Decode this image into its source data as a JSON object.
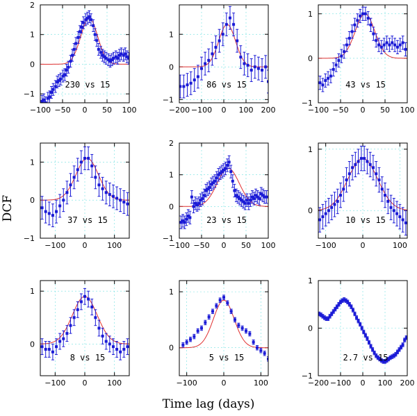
{
  "figure": {
    "ylabel": "DCF",
    "xlabel": "Time lag (days)"
  },
  "chart_data": [
    {
      "type": "scatter",
      "label": "230 vs 15",
      "xlim": [
        -100,
        100
      ],
      "ylim": [
        -1.3,
        2
      ],
      "xticks": [
        -100,
        -50,
        0,
        50,
        100
      ],
      "yticks": [
        -1,
        0,
        1,
        2
      ],
      "series": [
        {
          "name": "DCF",
          "x": [
            -96,
            -92,
            -88,
            -83,
            -79,
            -75,
            -71,
            -66,
            -62,
            -58,
            -54,
            -49,
            -45,
            -41,
            -37,
            -32,
            -28,
            -24,
            -20,
            -15,
            -11,
            -7,
            -3,
            2,
            6,
            10,
            14,
            19,
            23,
            27,
            31,
            36,
            40,
            44,
            48,
            53,
            57,
            61,
            65,
            70,
            74,
            78,
            82,
            87,
            91,
            95,
            99
          ],
          "y": [
            -1.25,
            -1.2,
            -1.3,
            -1.15,
            -1.1,
            -0.95,
            -0.85,
            -0.75,
            -0.6,
            -0.55,
            -0.5,
            -0.4,
            -0.35,
            -0.2,
            -0.1,
            0.1,
            0.3,
            0.5,
            0.7,
            0.9,
            1.1,
            1.25,
            1.4,
            1.5,
            1.55,
            1.6,
            1.5,
            1.3,
            1.0,
            0.8,
            0.5,
            0.4,
            0.3,
            0.25,
            0.2,
            0.15,
            0.1,
            0.15,
            0.2,
            0.25,
            0.2,
            0.3,
            0.35,
            0.3,
            0.35,
            0.25,
            0.2
          ],
          "err": 0.2
        },
        {
          "name": "Gaussian fit",
          "amplitude": 1.55,
          "center": 10,
          "sigma": 19,
          "offset": 0
        }
      ]
    },
    {
      "type": "scatter",
      "label": "86 vs 15",
      "xlim": [
        -200,
        200
      ],
      "ylim": [
        -1.1,
        1.9
      ],
      "xticks": [
        -200,
        -100,
        0,
        100,
        200
      ],
      "yticks": [
        -1,
        0,
        1
      ],
      "series": [
        {
          "name": "DCF",
          "x": [
            -196,
            -180,
            -164,
            -148,
            -132,
            -116,
            -100,
            -84,
            -68,
            -52,
            -36,
            -20,
            -4,
            12,
            28,
            44,
            60,
            76,
            92,
            108,
            124,
            140,
            156,
            172,
            188,
            200
          ],
          "y": [
            -0.6,
            -0.6,
            -0.55,
            -0.5,
            -0.4,
            -0.3,
            -0.05,
            0.1,
            0.2,
            0.4,
            0.6,
            0.8,
            1.0,
            1.3,
            1.5,
            1.3,
            0.8,
            0.3,
            0.1,
            0.05,
            -0.1,
            0.0,
            -0.05,
            -0.1,
            0.0,
            -0.45
          ],
          "err": 0.35
        },
        {
          "name": "Gaussian fit",
          "amplitude": 1.3,
          "center": 15,
          "sigma": 38,
          "offset": 0
        }
      ]
    },
    {
      "type": "scatter",
      "label": "43 vs 15",
      "xlim": [
        -100,
        100
      ],
      "ylim": [
        -1,
        1.2
      ],
      "xticks": [
        -100,
        -50,
        0,
        50,
        100
      ],
      "yticks": [
        -1,
        0,
        1
      ],
      "series": [
        {
          "name": "DCF",
          "x": [
            -96,
            -90,
            -84,
            -78,
            -72,
            -66,
            -60,
            -54,
            -48,
            -42,
            -36,
            -30,
            -24,
            -18,
            -12,
            -6,
            0,
            6,
            12,
            18,
            24,
            30,
            36,
            42,
            48,
            54,
            60,
            66,
            72,
            78,
            84,
            90,
            96
          ],
          "y": [
            -0.55,
            -0.6,
            -0.5,
            -0.45,
            -0.4,
            -0.25,
            -0.15,
            -0.05,
            0.05,
            0.15,
            0.3,
            0.45,
            0.6,
            0.75,
            0.85,
            0.95,
            1.0,
            1.0,
            0.9,
            0.75,
            0.55,
            0.4,
            0.3,
            0.25,
            0.3,
            0.35,
            0.3,
            0.35,
            0.3,
            0.25,
            0.3,
            0.35,
            0.2
          ],
          "err": 0.15
        },
        {
          "name": "Gaussian fit",
          "amplitude": 1.0,
          "center": 5,
          "sigma": 22,
          "offset": 0
        }
      ]
    },
    {
      "type": "scatter",
      "label": "37 vs 15",
      "xlim": [
        -150,
        150
      ],
      "ylim": [
        -1,
        1.5
      ],
      "xticks": [
        -100,
        0,
        100
      ],
      "yticks": [
        -1,
        0,
        1
      ],
      "series": [
        {
          "name": "DCF",
          "x": [
            -144,
            -132,
            -120,
            -108,
            -96,
            -84,
            -72,
            -60,
            -48,
            -36,
            -24,
            -12,
            0,
            12,
            24,
            36,
            48,
            60,
            72,
            84,
            96,
            108,
            120,
            132,
            144
          ],
          "y": [
            -0.2,
            -0.3,
            -0.35,
            -0.4,
            -0.3,
            -0.15,
            0.0,
            0.2,
            0.4,
            0.6,
            0.8,
            1.0,
            1.1,
            1.1,
            0.9,
            0.6,
            0.4,
            0.3,
            0.2,
            0.15,
            0.1,
            0.05,
            0.0,
            -0.05,
            -0.1
          ],
          "err": 0.3
        },
        {
          "name": "Gaussian fit",
          "amplitude": 1.1,
          "center": 8,
          "sigma": 38,
          "offset": 0
        }
      ]
    },
    {
      "type": "scatter",
      "label": "23 vs 15",
      "xlim": [
        -100,
        100
      ],
      "ylim": [
        -1,
        2
      ],
      "xticks": [
        -100,
        -50,
        0,
        50,
        100
      ],
      "yticks": [
        -1,
        0,
        1,
        2
      ],
      "series": [
        {
          "name": "DCF",
          "x": [
            -96,
            -92,
            -88,
            -84,
            -80,
            -76,
            -72,
            -68,
            -64,
            -60,
            -56,
            -52,
            -48,
            -44,
            -40,
            -36,
            -32,
            -28,
            -24,
            -20,
            -16,
            -12,
            -8,
            -4,
            0,
            4,
            8,
            12,
            16,
            20,
            24,
            28,
            32,
            36,
            40,
            44,
            48,
            52,
            56,
            60,
            64,
            68,
            72,
            76,
            80,
            84,
            88,
            92,
            96
          ],
          "y": [
            -0.5,
            -0.45,
            -0.5,
            -0.4,
            -0.3,
            -0.35,
            0.3,
            0.0,
            0.1,
            0.05,
            0.1,
            0.2,
            0.25,
            0.35,
            0.5,
            0.55,
            0.6,
            0.7,
            0.75,
            0.8,
            0.9,
            1.0,
            1.05,
            1.1,
            1.15,
            1.2,
            1.3,
            1.4,
            1.1,
            0.8,
            0.5,
            0.35,
            0.3,
            0.25,
            0.2,
            0.15,
            0.1,
            0.2,
            0.1,
            0.2,
            0.3,
            0.25,
            0.35,
            0.3,
            0.25,
            0.4,
            0.35,
            0.3,
            0.3
          ],
          "err": 0.2
        },
        {
          "name": "Gaussian fit",
          "amplitude": 1.2,
          "center": 10,
          "sigma": 25,
          "offset": 0
        }
      ]
    },
    {
      "type": "scatter",
      "label": "10 vs 15",
      "xlim": [
        -120,
        120
      ],
      "ylim": [
        -0.45,
        1.1
      ],
      "xticks": [
        -100,
        0,
        100
      ],
      "yticks": [
        0,
        1
      ],
      "series": [
        {
          "name": "DCF",
          "x": [
            -116,
            -108,
            -100,
            -92,
            -84,
            -76,
            -68,
            -60,
            -52,
            -44,
            -36,
            -28,
            -20,
            -12,
            -4,
            4,
            12,
            20,
            28,
            36,
            44,
            52,
            60,
            68,
            76,
            84,
            92,
            100,
            108,
            116
          ],
          "y": [
            -0.15,
            -0.1,
            -0.05,
            0.0,
            0.05,
            0.1,
            0.15,
            0.25,
            0.35,
            0.5,
            0.6,
            0.7,
            0.75,
            0.8,
            0.85,
            0.85,
            0.8,
            0.75,
            0.7,
            0.6,
            0.5,
            0.35,
            0.25,
            0.15,
            0.05,
            0.0,
            -0.05,
            -0.1,
            -0.15,
            -0.2
          ],
          "err": 0.2
        },
        {
          "name": "Gaussian fit",
          "amplitude": 0.85,
          "center": 0,
          "sigma": 40,
          "offset": 0
        }
      ]
    },
    {
      "type": "scatter",
      "label": "8 vs 15",
      "xlim": [
        -150,
        150
      ],
      "ylim": [
        -0.6,
        1.2
      ],
      "xticks": [
        -100,
        0,
        100
      ],
      "yticks": [
        0,
        1
      ],
      "series": [
        {
          "name": "DCF",
          "x": [
            -144,
            -132,
            -120,
            -108,
            -96,
            -84,
            -72,
            -60,
            -48,
            -36,
            -24,
            -12,
            0,
            12,
            24,
            36,
            48,
            60,
            72,
            84,
            96,
            108,
            120,
            132,
            144
          ],
          "y": [
            -0.05,
            -0.1,
            -0.1,
            -0.15,
            -0.05,
            0.05,
            0.1,
            0.2,
            0.35,
            0.5,
            0.65,
            0.8,
            0.9,
            0.85,
            0.7,
            0.5,
            0.3,
            0.15,
            0.05,
            0.0,
            -0.05,
            -0.1,
            -0.15,
            -0.1,
            -0.05
          ],
          "err": 0.15
        },
        {
          "name": "Gaussian fit",
          "amplitude": 0.9,
          "center": 0,
          "sigma": 42,
          "offset": 0
        }
      ]
    },
    {
      "type": "scatter",
      "label": "5 vs 15",
      "xlim": [
        -120,
        120
      ],
      "ylim": [
        -0.5,
        1.2
      ],
      "xticks": [
        -100,
        0,
        100
      ],
      "yticks": [
        0,
        1
      ],
      "series": [
        {
          "name": "DCF",
          "x": [
            -110,
            -100,
            -90,
            -80,
            -70,
            -60,
            -50,
            -40,
            -30,
            -20,
            -10,
            0,
            10,
            20,
            30,
            40,
            50,
            60,
            70,
            80,
            90,
            100,
            110,
            120
          ],
          "y": [
            0.05,
            0.1,
            0.15,
            0.2,
            0.3,
            0.35,
            0.45,
            0.55,
            0.65,
            0.75,
            0.85,
            0.9,
            0.8,
            0.65,
            0.5,
            0.4,
            0.35,
            0.3,
            0.25,
            0.1,
            0.0,
            -0.05,
            -0.1,
            -0.2
          ],
          "err": 0.04
        },
        {
          "name": "Gaussian fit",
          "amplitude": 0.85,
          "center": 0,
          "sigma": 28,
          "offset": 0
        }
      ]
    },
    {
      "type": "scatter",
      "label": "2.7 vs 15",
      "xlim": [
        -200,
        200
      ],
      "ylim": [
        -1,
        1
      ],
      "xticks": [
        -200,
        -100,
        0,
        100,
        200
      ],
      "yticks": [
        -1,
        0,
        1
      ],
      "series": [
        {
          "name": "DCF",
          "x": [
            -196,
            -188,
            -180,
            -172,
            -164,
            -156,
            -148,
            -140,
            -132,
            -124,
            -116,
            -108,
            -100,
            -92,
            -84,
            -76,
            -68,
            -60,
            -52,
            -44,
            -36,
            -28,
            -20,
            -12,
            -4,
            4,
            12,
            20,
            28,
            36,
            44,
            52,
            60,
            68,
            76,
            84,
            92,
            100,
            108,
            116,
            124,
            132,
            140,
            148,
            156,
            164,
            172,
            180,
            188,
            196
          ],
          "y": [
            0.3,
            0.28,
            0.25,
            0.22,
            0.2,
            0.2,
            0.25,
            0.3,
            0.35,
            0.4,
            0.45,
            0.5,
            0.55,
            0.58,
            0.6,
            0.58,
            0.55,
            0.5,
            0.45,
            0.38,
            0.3,
            0.22,
            0.15,
            0.08,
            0.0,
            -0.08,
            -0.15,
            -0.22,
            -0.3,
            -0.38,
            -0.45,
            -0.52,
            -0.58,
            -0.62,
            -0.65,
            -0.68,
            -0.7,
            -0.7,
            -0.68,
            -0.65,
            -0.62,
            -0.6,
            -0.58,
            -0.55,
            -0.5,
            -0.45,
            -0.4,
            -0.35,
            -0.25,
            -0.2
          ],
          "err": 0.04
        }
      ]
    }
  ]
}
